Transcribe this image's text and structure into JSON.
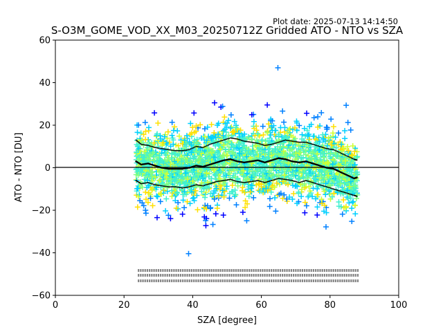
{
  "plot_date": "Plot date: 2025-07-13 14:14:50",
  "chart_data": {
    "type": "scatter",
    "title": "S-O3M_GOME_VOD_XX_M03_20250712Z Gridded ATO - NTO vs SZA",
    "xlabel": "SZA [degree]",
    "ylabel": "ATO - NTO [DU]",
    "xlim": [
      0,
      100
    ],
    "ylim": [
      -60,
      60
    ],
    "xticks": [
      "0",
      "20",
      "40",
      "60",
      "80",
      "100"
    ],
    "yticks": [
      "60",
      "40",
      "20",
      "0",
      "−20",
      "−40",
      "−60"
    ],
    "xtick_values": [
      0,
      20,
      40,
      60,
      80,
      100
    ],
    "ytick_values": [
      60,
      40,
      20,
      0,
      -20,
      -40,
      -60
    ],
    "grid": false,
    "reference_line_y": 0,
    "colormap_colors": [
      "#0000ff",
      "#0080ff",
      "#00d0ff",
      "#40f0d0",
      "#80ff80",
      "#d0ff30",
      "#ffe000"
    ],
    "series": [
      {
        "marker": "black-dots",
        "x": [
          23.5,
          25,
          27,
          29,
          31,
          33,
          35,
          37,
          39,
          41,
          43,
          45,
          47,
          49,
          51,
          53,
          55,
          57,
          59,
          61,
          63,
          65,
          67,
          69,
          71,
          73,
          75,
          77,
          79,
          81,
          83,
          85,
          87,
          88
        ],
        "values": [
          3,
          1.5,
          2,
          1,
          0,
          -0.5,
          -0.5,
          -0.5,
          0,
          1,
          0.5,
          1.5,
          2.5,
          3.5,
          4,
          3,
          2.5,
          3,
          3.5,
          2.5,
          3.5,
          4.5,
          4,
          3,
          2.5,
          3,
          2,
          1,
          0,
          -0.5,
          -2,
          -3.5,
          -5,
          -4.5
        ]
      },
      {
        "marker": "black-dots",
        "x": [
          23.5,
          25,
          27,
          29,
          31,
          33,
          35,
          37,
          39,
          41,
          43,
          45,
          47,
          49,
          51,
          53,
          55,
          57,
          59,
          61,
          63,
          65,
          67,
          69,
          71,
          73,
          75,
          77,
          79,
          81,
          83,
          85,
          87,
          88
        ],
        "values": [
          13,
          11,
          10.5,
          9.5,
          9,
          8.5,
          8,
          8,
          8.5,
          10,
          9.5,
          11,
          12,
          13,
          14,
          13.5,
          12.5,
          12,
          11.5,
          10.5,
          11,
          12,
          13,
          12.5,
          12,
          12,
          11,
          10,
          9,
          8.5,
          7,
          5.5,
          4,
          3.5
        ]
      },
      {
        "marker": "black-dots",
        "x": [
          23.5,
          25,
          27,
          29,
          31,
          33,
          35,
          37,
          39,
          41,
          43,
          45,
          47,
          49,
          51,
          53,
          55,
          57,
          59,
          61,
          63,
          65,
          67,
          69,
          71,
          73,
          75,
          77,
          79,
          81,
          83,
          85,
          87,
          88
        ],
        "values": [
          -6,
          -7.5,
          -7,
          -8,
          -8.5,
          -9,
          -9,
          -9.5,
          -9,
          -8,
          -8.5,
          -7.5,
          -6.5,
          -6,
          -5.5,
          -6.5,
          -7,
          -6.5,
          -6,
          -7,
          -6,
          -5,
          -5.5,
          -6,
          -7,
          -6,
          -7,
          -8,
          -9,
          -10,
          -11,
          -12,
          -13,
          -13.5
        ]
      }
    ]
  }
}
